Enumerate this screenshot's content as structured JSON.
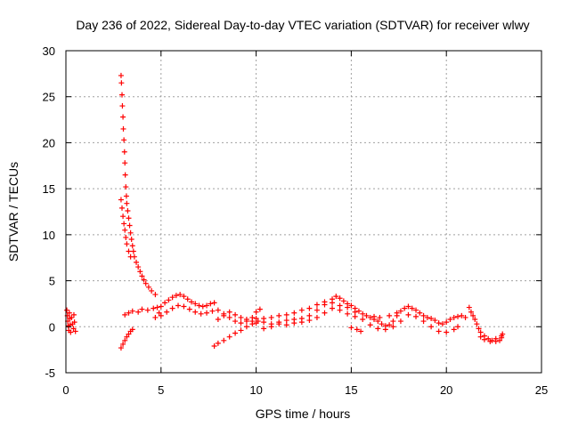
{
  "chart_data": {
    "type": "scatter",
    "title": "Day 236 of 2022, Sidereal Day-to-day VTEC variation (SDTVAR) for receiver wlwy",
    "xlabel": "GPS time / hours",
    "ylabel": "SDTVAR / TECUs",
    "xlim": [
      0,
      25
    ],
    "ylim": [
      -5,
      30
    ],
    "xticks": [
      "0",
      "5",
      "10",
      "15",
      "20",
      "25"
    ],
    "yticks": [
      "-5",
      "0",
      "5",
      "10",
      "15",
      "20",
      "25",
      "30"
    ],
    "grid": true,
    "marker": "+",
    "color": "#ff0000",
    "series": [
      {
        "name": "SDTVAR",
        "points": [
          [
            0.05,
            1.8
          ],
          [
            0.08,
            1.2
          ],
          [
            0.1,
            0.6
          ],
          [
            0.12,
            0.1
          ],
          [
            0.15,
            -0.4
          ],
          [
            0.18,
            1.5
          ],
          [
            0.2,
            0.9
          ],
          [
            0.22,
            0.2
          ],
          [
            0.25,
            -0.6
          ],
          [
            0.3,
            1.0
          ],
          [
            0.35,
            0.3
          ],
          [
            0.4,
            -0.2
          ],
          [
            0.42,
            1.3
          ],
          [
            0.45,
            0.5
          ],
          [
            0.5,
            -0.5
          ],
          [
            2.9,
            27.3
          ],
          [
            2.92,
            26.5
          ],
          [
            2.95,
            25.2
          ],
          [
            2.97,
            24.0
          ],
          [
            3.0,
            22.8
          ],
          [
            3.02,
            21.5
          ],
          [
            3.05,
            20.3
          ],
          [
            3.08,
            19.0
          ],
          [
            3.1,
            17.8
          ],
          [
            3.12,
            16.5
          ],
          [
            3.15,
            15.2
          ],
          [
            3.18,
            14.2
          ],
          [
            3.2,
            13.4
          ],
          [
            3.25,
            12.6
          ],
          [
            3.3,
            11.8
          ],
          [
            3.35,
            11.0
          ],
          [
            3.4,
            10.2
          ],
          [
            3.45,
            9.5
          ],
          [
            3.5,
            8.8
          ],
          [
            3.55,
            8.2
          ],
          [
            3.6,
            7.6
          ],
          [
            3.7,
            7.0
          ],
          [
            3.8,
            6.5
          ],
          [
            3.9,
            6.0
          ],
          [
            4.0,
            5.5
          ],
          [
            4.1,
            5.1
          ],
          [
            4.2,
            4.7
          ],
          [
            4.35,
            4.3
          ],
          [
            4.5,
            3.9
          ],
          [
            4.7,
            3.5
          ],
          [
            2.9,
            13.8
          ],
          [
            2.95,
            12.9
          ],
          [
            3.0,
            12.0
          ],
          [
            3.05,
            11.2
          ],
          [
            3.1,
            10.5
          ],
          [
            3.15,
            9.7
          ],
          [
            3.2,
            9.0
          ],
          [
            3.3,
            8.2
          ],
          [
            3.4,
            7.6
          ],
          [
            2.9,
            -2.3
          ],
          [
            3.0,
            -1.9
          ],
          [
            3.1,
            -1.5
          ],
          [
            3.2,
            -1.1
          ],
          [
            3.3,
            -0.8
          ],
          [
            3.4,
            -0.5
          ],
          [
            3.5,
            -0.3
          ],
          [
            3.1,
            1.3
          ],
          [
            3.3,
            1.5
          ],
          [
            3.5,
            1.7
          ],
          [
            3.8,
            1.6
          ],
          [
            4.0,
            1.9
          ],
          [
            4.3,
            1.8
          ],
          [
            4.6,
            2.0
          ],
          [
            4.8,
            2.1
          ],
          [
            4.7,
            1.0
          ],
          [
            4.9,
            1.5
          ],
          [
            5.0,
            2.2
          ],
          [
            5.2,
            2.6
          ],
          [
            5.4,
            2.9
          ],
          [
            5.6,
            3.2
          ],
          [
            5.8,
            3.4
          ],
          [
            6.0,
            3.5
          ],
          [
            6.2,
            3.3
          ],
          [
            6.4,
            3.0
          ],
          [
            6.6,
            2.7
          ],
          [
            6.8,
            2.5
          ],
          [
            7.0,
            2.3
          ],
          [
            7.2,
            2.2
          ],
          [
            7.4,
            2.3
          ],
          [
            7.6,
            2.5
          ],
          [
            7.8,
            2.6
          ],
          [
            5.0,
            1.2
          ],
          [
            5.3,
            1.6
          ],
          [
            5.6,
            2.0
          ],
          [
            5.9,
            2.3
          ],
          [
            6.2,
            2.2
          ],
          [
            6.5,
            1.9
          ],
          [
            6.8,
            1.6
          ],
          [
            7.1,
            1.4
          ],
          [
            7.4,
            1.5
          ],
          [
            7.7,
            1.7
          ],
          [
            8.0,
            1.8
          ],
          [
            8.3,
            1.4
          ],
          [
            8.6,
            1.0
          ],
          [
            8.9,
            0.6
          ],
          [
            9.2,
            0.4
          ],
          [
            9.5,
            0.6
          ],
          [
            9.8,
            1.0
          ],
          [
            10.0,
            1.6
          ],
          [
            10.2,
            1.9
          ],
          [
            7.8,
            -2.1
          ],
          [
            8.0,
            -1.8
          ],
          [
            8.3,
            -1.5
          ],
          [
            8.6,
            -1.1
          ],
          [
            8.9,
            -0.7
          ],
          [
            9.2,
            -0.4
          ],
          [
            9.5,
            0.0
          ],
          [
            9.8,
            0.3
          ],
          [
            10.1,
            0.6
          ],
          [
            8.0,
            0.8
          ],
          [
            8.3,
            1.2
          ],
          [
            8.6,
            1.6
          ],
          [
            8.9,
            1.3
          ],
          [
            9.2,
            1.0
          ],
          [
            9.5,
            0.8
          ],
          [
            9.8,
            0.6
          ],
          [
            10.0,
            0.9
          ],
          [
            10.4,
            0.5
          ],
          [
            10.8,
            0.3
          ],
          [
            11.2,
            0.5
          ],
          [
            11.6,
            0.7
          ],
          [
            12.0,
            0.8
          ],
          [
            12.4,
            0.9
          ],
          [
            12.8,
            1.2
          ],
          [
            13.2,
            1.8
          ],
          [
            13.6,
            2.4
          ],
          [
            14.0,
            3.0
          ],
          [
            14.2,
            3.3
          ],
          [
            14.4,
            3.1
          ],
          [
            14.6,
            2.8
          ],
          [
            14.8,
            2.5
          ],
          [
            15.0,
            2.3
          ],
          [
            15.2,
            2.0
          ],
          [
            15.4,
            1.7
          ],
          [
            15.6,
            1.4
          ],
          [
            15.8,
            1.2
          ],
          [
            16.0,
            1.0
          ],
          [
            16.2,
            0.8
          ],
          [
            16.4,
            0.6
          ],
          [
            16.6,
            0.3
          ],
          [
            16.8,
            0.1
          ],
          [
            17.0,
            0.2
          ],
          [
            17.2,
            0.6
          ],
          [
            17.4,
            1.2
          ],
          [
            17.6,
            1.7
          ],
          [
            17.8,
            2.0
          ],
          [
            18.0,
            2.2
          ],
          [
            18.2,
            2.0
          ],
          [
            18.4,
            1.8
          ],
          [
            18.6,
            1.5
          ],
          [
            18.8,
            1.2
          ],
          [
            19.0,
            1.0
          ],
          [
            19.2,
            0.9
          ],
          [
            19.4,
            0.7
          ],
          [
            19.6,
            0.4
          ],
          [
            19.8,
            0.3
          ],
          [
            20.0,
            0.5
          ],
          [
            20.2,
            0.8
          ],
          [
            20.4,
            1.0
          ],
          [
            20.6,
            1.1
          ],
          [
            20.8,
            1.2
          ],
          [
            21.0,
            1.0
          ],
          [
            10.4,
            -0.2
          ],
          [
            10.8,
            0.0
          ],
          [
            11.2,
            0.3
          ],
          [
            11.6,
            0.2
          ],
          [
            12.0,
            0.4
          ],
          [
            12.4,
            0.5
          ],
          [
            12.8,
            0.7
          ],
          [
            13.2,
            1.0
          ],
          [
            13.6,
            1.5
          ],
          [
            14.0,
            2.0
          ],
          [
            14.4,
            1.8
          ],
          [
            14.8,
            1.4
          ],
          [
            15.2,
            1.1
          ],
          [
            15.6,
            0.8
          ],
          [
            16.0,
            0.2
          ],
          [
            16.4,
            -0.2
          ],
          [
            16.8,
            -0.3
          ],
          [
            17.2,
            0.0
          ],
          [
            17.6,
            0.6
          ],
          [
            18.0,
            1.3
          ],
          [
            18.4,
            1.1
          ],
          [
            18.8,
            0.6
          ],
          [
            19.2,
            0.0
          ],
          [
            19.6,
            -0.5
          ],
          [
            20.0,
            -0.6
          ],
          [
            20.4,
            -0.3
          ],
          [
            20.6,
            0.0
          ],
          [
            10.0,
            0.4
          ],
          [
            10.4,
            0.9
          ],
          [
            10.8,
            1.0
          ],
          [
            11.2,
            1.2
          ],
          [
            11.6,
            1.3
          ],
          [
            12.0,
            1.5
          ],
          [
            12.4,
            1.8
          ],
          [
            12.8,
            2.0
          ],
          [
            13.2,
            2.4
          ],
          [
            13.6,
            2.7
          ],
          [
            14.0,
            2.6
          ],
          [
            14.4,
            2.3
          ],
          [
            14.8,
            2.1
          ],
          [
            15.2,
            1.6
          ],
          [
            15.0,
            -0.1
          ],
          [
            15.3,
            -0.3
          ],
          [
            15.5,
            -0.5
          ],
          [
            16.2,
            1.1
          ],
          [
            16.5,
            1.0
          ],
          [
            17.0,
            1.2
          ],
          [
            17.4,
            1.5
          ],
          [
            21.2,
            2.1
          ],
          [
            21.3,
            1.6
          ],
          [
            21.4,
            1.2
          ],
          [
            21.5,
            0.8
          ],
          [
            21.6,
            0.3
          ],
          [
            21.7,
            -0.2
          ],
          [
            21.8,
            -0.6
          ],
          [
            22.0,
            -1.0
          ],
          [
            22.2,
            -1.3
          ],
          [
            22.4,
            -1.5
          ],
          [
            22.6,
            -1.6
          ],
          [
            22.8,
            -1.5
          ],
          [
            22.9,
            -1.2
          ],
          [
            22.95,
            -0.8
          ],
          [
            21.8,
            -1.1
          ],
          [
            22.0,
            -1.4
          ],
          [
            22.3,
            -1.6
          ],
          [
            22.6,
            -1.3
          ],
          [
            22.9,
            -1.0
          ]
        ]
      }
    ]
  }
}
